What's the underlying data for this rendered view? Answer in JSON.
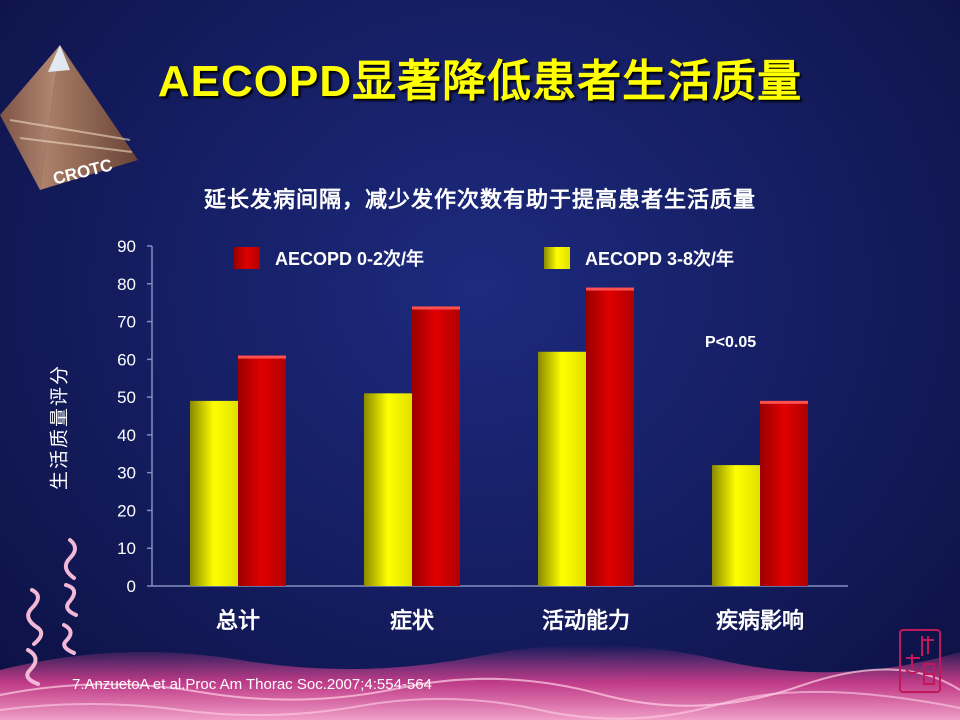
{
  "title": "AECOPD显著降低患者生活质量",
  "subtitle": "延长发病间隔，减少发作次数有助于提高患者生活质量",
  "logo_text": "CROTC",
  "footnote": "7.AnzuetoA et al.Proc Am Thorac Soc.2007;4:554-564",
  "annotation": "P<0.05",
  "colors": {
    "title": "#ffff00",
    "background": "#141c5e",
    "yellow_series": "#ffff00",
    "red_series": "#cc0000"
  },
  "chart_data": {
    "type": "bar",
    "categories": [
      "总计",
      "症状",
      "活动能力",
      "疾病影响"
    ],
    "series": [
      {
        "name": "AECOPD  3-8次/年",
        "color": "#ffff00",
        "values": [
          49,
          51,
          62,
          32
        ]
      },
      {
        "name": "AECOPD  0-2次/年",
        "color": "#cc0000",
        "values": [
          61,
          74,
          79,
          49
        ]
      }
    ],
    "legend_order": [
      1,
      0
    ],
    "ylabel": "生活质量评分",
    "xlabel": "",
    "ylim": [
      0,
      90
    ],
    "yticks": [
      0,
      10,
      20,
      30,
      40,
      50,
      60,
      70,
      80,
      90
    ],
    "legend_position": "top",
    "grid": false
  }
}
